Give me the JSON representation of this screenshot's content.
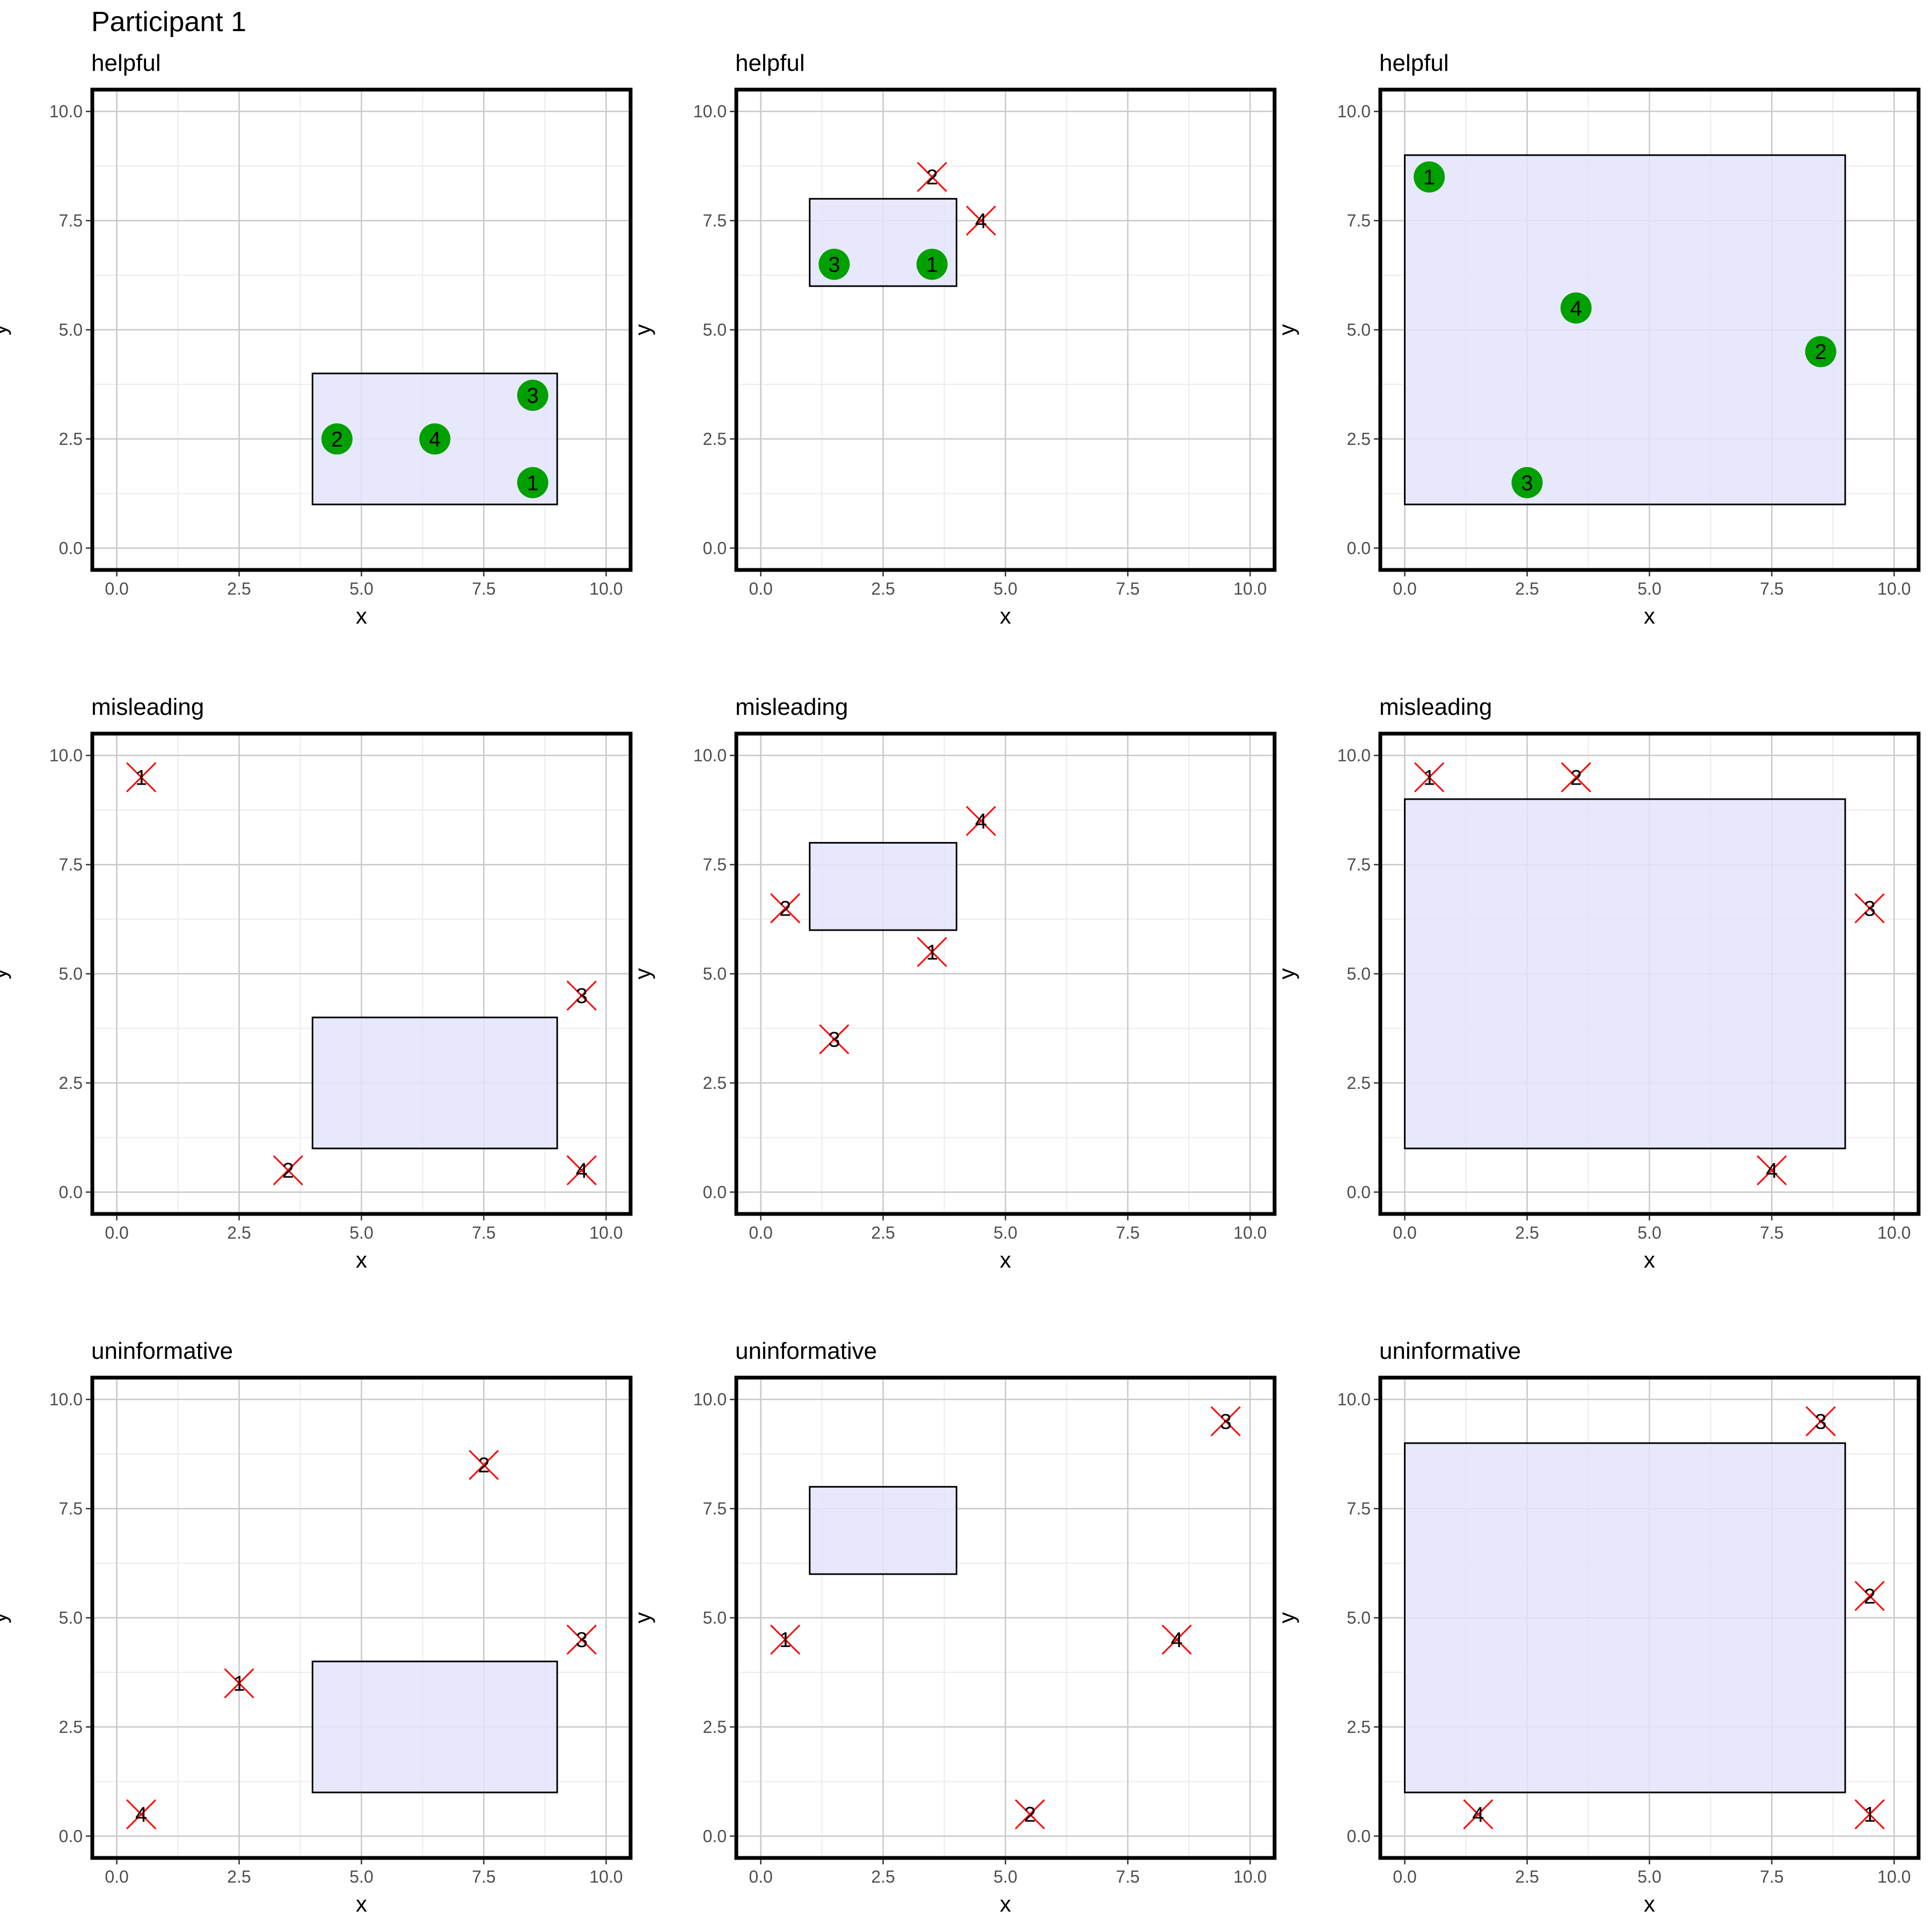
{
  "figure": {
    "title": "Participant 1"
  },
  "chart_data": [
    {
      "type": "scatter",
      "title": "helpful",
      "xlabel": "x",
      "ylabel": "y",
      "xlim": [
        -0.5,
        10.5
      ],
      "ylim": [
        -0.5,
        10.5
      ],
      "xticks": [
        "0.0",
        "2.5",
        "5.0",
        "7.5",
        "10.0"
      ],
      "yticks": [
        "0.0",
        "2.5",
        "5.0",
        "7.5",
        "10.0"
      ],
      "rect": {
        "x0": 4,
        "x1": 9,
        "y0": 1,
        "y1": 4
      },
      "points": [
        {
          "label": "1",
          "x": 8.5,
          "y": 1.5,
          "status": "positive"
        },
        {
          "label": "2",
          "x": 4.5,
          "y": 2.5,
          "status": "positive"
        },
        {
          "label": "3",
          "x": 8.5,
          "y": 3.5,
          "status": "positive"
        },
        {
          "label": "4",
          "x": 6.5,
          "y": 2.5,
          "status": "positive"
        }
      ]
    },
    {
      "type": "scatter",
      "title": "helpful",
      "xlabel": "x",
      "ylabel": "y",
      "xlim": [
        -0.5,
        10.5
      ],
      "ylim": [
        -0.5,
        10.5
      ],
      "xticks": [
        "0.0",
        "2.5",
        "5.0",
        "7.5",
        "10.0"
      ],
      "yticks": [
        "0.0",
        "2.5",
        "5.0",
        "7.5",
        "10.0"
      ],
      "rect": {
        "x0": 1,
        "x1": 4,
        "y0": 6,
        "y1": 8
      },
      "points": [
        {
          "label": "1",
          "x": 3.5,
          "y": 6.5,
          "status": "positive"
        },
        {
          "label": "2",
          "x": 3.5,
          "y": 8.5,
          "status": "negative"
        },
        {
          "label": "3",
          "x": 1.5,
          "y": 6.5,
          "status": "positive"
        },
        {
          "label": "4",
          "x": 4.5,
          "y": 7.5,
          "status": "negative"
        }
      ]
    },
    {
      "type": "scatter",
      "title": "helpful",
      "xlabel": "x",
      "ylabel": "y",
      "xlim": [
        -0.5,
        10.5
      ],
      "ylim": [
        -0.5,
        10.5
      ],
      "xticks": [
        "0.0",
        "2.5",
        "5.0",
        "7.5",
        "10.0"
      ],
      "yticks": [
        "0.0",
        "2.5",
        "5.0",
        "7.5",
        "10.0"
      ],
      "rect": {
        "x0": 0,
        "x1": 9,
        "y0": 1,
        "y1": 9
      },
      "points": [
        {
          "label": "1",
          "x": 0.5,
          "y": 8.5,
          "status": "positive"
        },
        {
          "label": "2",
          "x": 8.5,
          "y": 4.5,
          "status": "positive"
        },
        {
          "label": "3",
          "x": 2.5,
          "y": 1.5,
          "status": "positive"
        },
        {
          "label": "4",
          "x": 3.5,
          "y": 5.5,
          "status": "positive"
        }
      ]
    },
    {
      "type": "scatter",
      "title": "misleading",
      "xlabel": "x",
      "ylabel": "y",
      "xlim": [
        -0.5,
        10.5
      ],
      "ylim": [
        -0.5,
        10.5
      ],
      "xticks": [
        "0.0",
        "2.5",
        "5.0",
        "7.5",
        "10.0"
      ],
      "yticks": [
        "0.0",
        "2.5",
        "5.0",
        "7.5",
        "10.0"
      ],
      "rect": {
        "x0": 4,
        "x1": 9,
        "y0": 1,
        "y1": 4
      },
      "points": [
        {
          "label": "1",
          "x": 0.5,
          "y": 9.5,
          "status": "negative"
        },
        {
          "label": "2",
          "x": 3.5,
          "y": 0.5,
          "status": "negative"
        },
        {
          "label": "3",
          "x": 9.5,
          "y": 4.5,
          "status": "negative"
        },
        {
          "label": "4",
          "x": 9.5,
          "y": 0.5,
          "status": "negative"
        }
      ]
    },
    {
      "type": "scatter",
      "title": "misleading",
      "xlabel": "x",
      "ylabel": "y",
      "xlim": [
        -0.5,
        10.5
      ],
      "ylim": [
        -0.5,
        10.5
      ],
      "xticks": [
        "0.0",
        "2.5",
        "5.0",
        "7.5",
        "10.0"
      ],
      "yticks": [
        "0.0",
        "2.5",
        "5.0",
        "7.5",
        "10.0"
      ],
      "rect": {
        "x0": 1,
        "x1": 4,
        "y0": 6,
        "y1": 8
      },
      "points": [
        {
          "label": "1",
          "x": 3.5,
          "y": 5.5,
          "status": "negative"
        },
        {
          "label": "2",
          "x": 0.5,
          "y": 6.5,
          "status": "negative"
        },
        {
          "label": "3",
          "x": 1.5,
          "y": 3.5,
          "status": "negative"
        },
        {
          "label": "4",
          "x": 4.5,
          "y": 8.5,
          "status": "negative"
        }
      ]
    },
    {
      "type": "scatter",
      "title": "misleading",
      "xlabel": "x",
      "ylabel": "y",
      "xlim": [
        -0.5,
        10.5
      ],
      "ylim": [
        -0.5,
        10.5
      ],
      "xticks": [
        "0.0",
        "2.5",
        "5.0",
        "7.5",
        "10.0"
      ],
      "yticks": [
        "0.0",
        "2.5",
        "5.0",
        "7.5",
        "10.0"
      ],
      "rect": {
        "x0": 0,
        "x1": 9,
        "y0": 1,
        "y1": 9
      },
      "points": [
        {
          "label": "1",
          "x": 0.5,
          "y": 9.5,
          "status": "negative"
        },
        {
          "label": "2",
          "x": 3.5,
          "y": 9.5,
          "status": "negative"
        },
        {
          "label": "3",
          "x": 9.5,
          "y": 6.5,
          "status": "negative"
        },
        {
          "label": "4",
          "x": 7.5,
          "y": 0.5,
          "status": "negative"
        }
      ]
    },
    {
      "type": "scatter",
      "title": "uninformative",
      "xlabel": "x",
      "ylabel": "y",
      "xlim": [
        -0.5,
        10.5
      ],
      "ylim": [
        -0.5,
        10.5
      ],
      "xticks": [
        "0.0",
        "2.5",
        "5.0",
        "7.5",
        "10.0"
      ],
      "yticks": [
        "0.0",
        "2.5",
        "5.0",
        "7.5",
        "10.0"
      ],
      "rect": {
        "x0": 4,
        "x1": 9,
        "y0": 1,
        "y1": 4
      },
      "points": [
        {
          "label": "1",
          "x": 2.5,
          "y": 3.5,
          "status": "negative"
        },
        {
          "label": "2",
          "x": 7.5,
          "y": 8.5,
          "status": "negative"
        },
        {
          "label": "3",
          "x": 9.5,
          "y": 4.5,
          "status": "negative"
        },
        {
          "label": "4",
          "x": 0.5,
          "y": 0.5,
          "status": "negative"
        }
      ]
    },
    {
      "type": "scatter",
      "title": "uninformative",
      "xlabel": "x",
      "ylabel": "y",
      "xlim": [
        -0.5,
        10.5
      ],
      "ylim": [
        -0.5,
        10.5
      ],
      "xticks": [
        "0.0",
        "2.5",
        "5.0",
        "7.5",
        "10.0"
      ],
      "yticks": [
        "0.0",
        "2.5",
        "5.0",
        "7.5",
        "10.0"
      ],
      "rect": {
        "x0": 1,
        "x1": 4,
        "y0": 6,
        "y1": 8
      },
      "points": [
        {
          "label": "1",
          "x": 0.5,
          "y": 4.5,
          "status": "negative"
        },
        {
          "label": "2",
          "x": 5.5,
          "y": 0.5,
          "status": "negative"
        },
        {
          "label": "3",
          "x": 9.5,
          "y": 9.5,
          "status": "negative"
        },
        {
          "label": "4",
          "x": 8.5,
          "y": 4.5,
          "status": "negative"
        }
      ]
    },
    {
      "type": "scatter",
      "title": "uninformative",
      "xlabel": "x",
      "ylabel": "y",
      "xlim": [
        -0.5,
        10.5
      ],
      "ylim": [
        -0.5,
        10.5
      ],
      "xticks": [
        "0.0",
        "2.5",
        "5.0",
        "7.5",
        "10.0"
      ],
      "yticks": [
        "0.0",
        "2.5",
        "5.0",
        "7.5",
        "10.0"
      ],
      "rect": {
        "x0": 0,
        "x1": 9,
        "y0": 1,
        "y1": 9
      },
      "points": [
        {
          "label": "1",
          "x": 9.5,
          "y": 0.5,
          "status": "negative"
        },
        {
          "label": "2",
          "x": 9.5,
          "y": 5.5,
          "status": "negative"
        },
        {
          "label": "3",
          "x": 8.5,
          "y": 9.5,
          "status": "negative"
        },
        {
          "label": "4",
          "x": 1.5,
          "y": 0.5,
          "status": "negative"
        }
      ]
    }
  ],
  "colors": {
    "rect_fill": "#e4e4fb",
    "rect_stroke": "#000000",
    "positive": "#00a000",
    "negative": "#ff0000",
    "grid_major": "#c8c8c8",
    "grid_minor": "#ececec",
    "panel_border": "#000000"
  }
}
